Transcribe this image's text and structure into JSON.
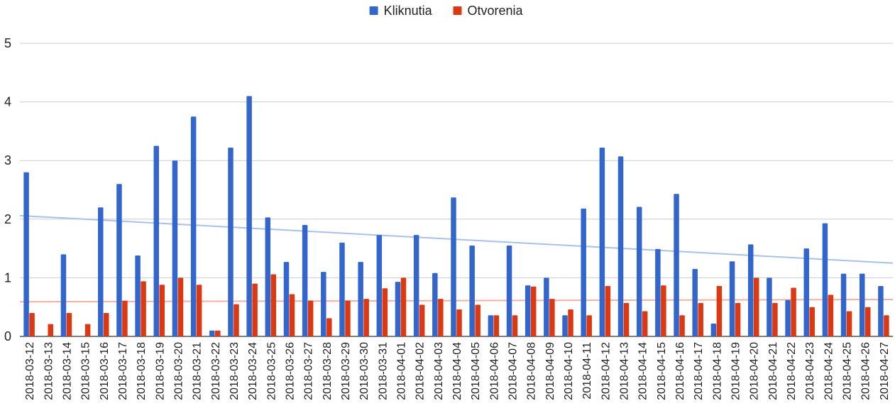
{
  "chart_data": {
    "type": "bar",
    "title": "",
    "xlabel": "",
    "ylabel": "",
    "ylim": [
      0,
      5
    ],
    "yticks": [
      0,
      1,
      2,
      3,
      4,
      5
    ],
    "grid": true,
    "legend_position": "top-center",
    "categories": [
      "2018-03-12",
      "2018-03-13",
      "2018-03-14",
      "2018-03-15",
      "2018-03-16",
      "2018-03-17",
      "2018-03-18",
      "2018-03-19",
      "2018-03-20",
      "2018-03-21",
      "2018-03-22",
      "2018-03-23",
      "2018-03-24",
      "2018-03-25",
      "2018-03-26",
      "2018-03-27",
      "2018-03-28",
      "2018-03-29",
      "2018-03-30",
      "2018-03-31",
      "2018-04-01",
      "2018-04-02",
      "2018-04-03",
      "2018-04-04",
      "2018-04-05",
      "2018-04-06",
      "2018-04-07",
      "2018-04-08",
      "2018-04-09",
      "2018-04-10",
      "2018-04-11",
      "2018-04-12",
      "2018-04-13",
      "2018-04-14",
      "2018-04-15",
      "2018-04-16",
      "2018-04-17",
      "2018-04-18",
      "2018-04-19",
      "2018-04-20",
      "2018-04-21",
      "2018-04-22",
      "2018-04-23",
      "2018-04-24",
      "2018-04-25",
      "2018-04-26",
      "2018-04-27"
    ],
    "series": [
      {
        "name": "Kliknutia",
        "color": "#3366cc",
        "values": [
          2.8,
          0,
          1.4,
          0,
          2.2,
          2.6,
          1.38,
          3.25,
          3.0,
          3.75,
          0.1,
          3.22,
          4.1,
          2.03,
          1.27,
          1.9,
          1.1,
          1.6,
          1.27,
          1.73,
          0.93,
          1.73,
          1.08,
          2.37,
          1.55,
          0.36,
          1.55,
          0.87,
          1.0,
          0.36,
          2.18,
          3.22,
          3.07,
          2.21,
          1.49,
          2.43,
          1.15,
          0.22,
          1.28,
          1.57,
          1.0,
          0.62,
          1.5,
          1.93,
          1.07,
          1.07,
          0.86
        ],
        "trendline": {
          "start": 2.06,
          "end": 1.25,
          "color": "#a8c1e8"
        }
      },
      {
        "name": "Otvorenia",
        "color": "#dc3912",
        "values": [
          0.4,
          0.21,
          0.4,
          0.21,
          0.4,
          0.61,
          0.94,
          0.88,
          1.0,
          0.88,
          0.1,
          0.55,
          0.9,
          1.06,
          0.72,
          0.61,
          0.31,
          0.61,
          0.64,
          0.82,
          1.0,
          0.54,
          0.64,
          0.46,
          0.54,
          0.36,
          0.36,
          0.85,
          0.64,
          0.46,
          0.36,
          0.86,
          0.57,
          0.43,
          0.87,
          0.36,
          0.57,
          0.86,
          0.57,
          1.0,
          0.57,
          0.83,
          0.5,
          0.71,
          0.43,
          0.5,
          0.36
        ],
        "trendline": {
          "start": 0.59,
          "end": 0.63,
          "color": "#f4b1a2"
        }
      }
    ],
    "colors": {
      "gridline": "#cccccc",
      "axis": "#333333"
    }
  }
}
